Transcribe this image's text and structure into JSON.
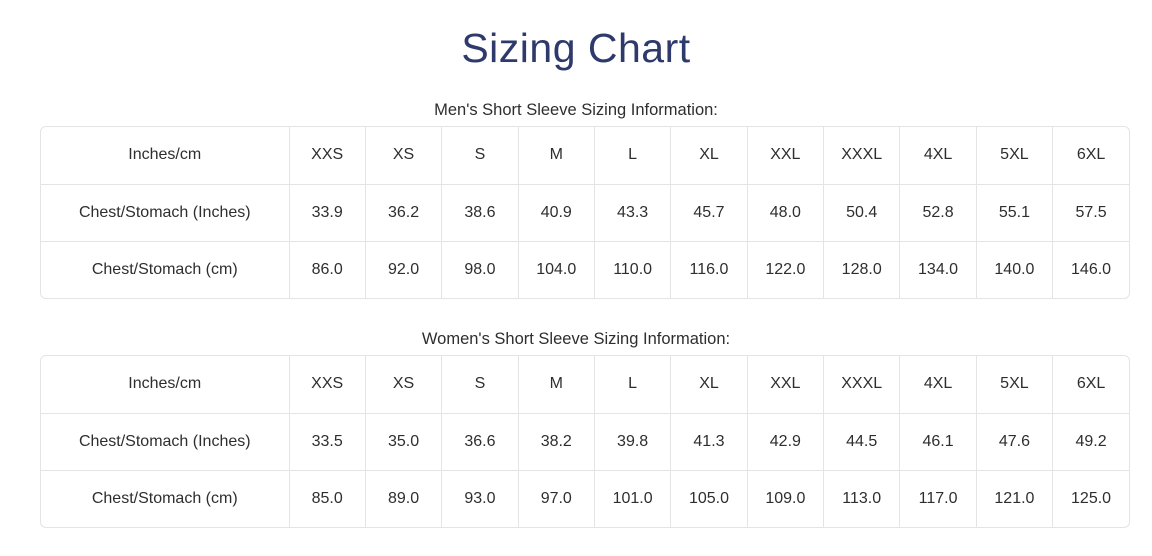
{
  "page": {
    "title": "Sizing Chart"
  },
  "colors": {
    "title": "#2d3a6b",
    "text": "#2e2e2e",
    "border": "#e4e4e4",
    "bg": "#ffffff"
  },
  "sections": [
    {
      "id": "mens",
      "heading": "Men's Short Sleeve Sizing Information:",
      "table": {
        "header": [
          "Inches/cm",
          "XXS",
          "XS",
          "S",
          "M",
          "L",
          "XL",
          "XXL",
          "XXXL",
          "4XL",
          "5XL",
          "6XL"
        ],
        "rows": [
          [
            "Chest/Stomach (Inches)",
            "33.9",
            "36.2",
            "38.6",
            "40.9",
            "43.3",
            "45.7",
            "48.0",
            "50.4",
            "52.8",
            "55.1",
            "57.5"
          ],
          [
            "Chest/Stomach (cm)",
            "86.0",
            "92.0",
            "98.0",
            "104.0",
            "110.0",
            "116.0",
            "122.0",
            "128.0",
            "134.0",
            "140.0",
            "146.0"
          ]
        ]
      }
    },
    {
      "id": "womens",
      "heading": "Women's Short Sleeve Sizing Information:",
      "table": {
        "header": [
          "Inches/cm",
          "XXS",
          "XS",
          "S",
          "M",
          "L",
          "XL",
          "XXL",
          "XXXL",
          "4XL",
          "5XL",
          "6XL"
        ],
        "rows": [
          [
            "Chest/Stomach (Inches)",
            "33.5",
            "35.0",
            "36.6",
            "38.2",
            "39.8",
            "41.3",
            "42.9",
            "44.5",
            "46.1",
            "47.6",
            "49.2"
          ],
          [
            "Chest/Stomach (cm)",
            "85.0",
            "89.0",
            "93.0",
            "97.0",
            "101.0",
            "105.0",
            "109.0",
            "113.0",
            "117.0",
            "121.0",
            "125.0"
          ]
        ]
      }
    }
  ]
}
